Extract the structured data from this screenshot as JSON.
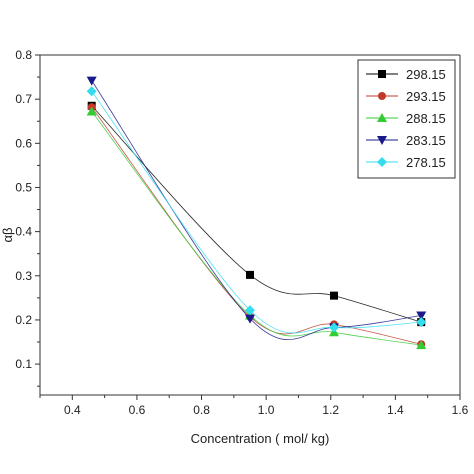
{
  "chart_data": {
    "type": "line",
    "title": "",
    "xlabel": "Concentration ( mol/ kg)",
    "ylabel": "αβ",
    "xlim": [
      0.3,
      1.6
    ],
    "ylim": [
      0.03,
      0.8
    ],
    "xticks": [
      "0.4",
      "0.6",
      "0.8",
      "1.0",
      "1.2",
      "1.4",
      "1.6"
    ],
    "yticks": [
      "0.1",
      "0.2",
      "0.3",
      "0.4",
      "0.5",
      "0.6",
      "0.7",
      "0.8"
    ],
    "xtick_values": [
      0.4,
      0.6,
      0.8,
      1.0,
      1.2,
      1.4,
      1.6
    ],
    "ytick_values": [
      0.1,
      0.2,
      0.3,
      0.4,
      0.5,
      0.6,
      0.7,
      0.8
    ],
    "grid": false,
    "legend_position": "top-right",
    "x": [
      0.46,
      0.95,
      1.21,
      1.48
    ],
    "series": [
      {
        "name": "298.15",
        "values": [
          0.685,
          0.302,
          0.255,
          0.195
        ],
        "color": "#000000",
        "marker": "square"
      },
      {
        "name": "293.15",
        "values": [
          0.682,
          0.207,
          0.19,
          0.145
        ],
        "color": "#c0392b",
        "marker": "circle"
      },
      {
        "name": "288.15",
        "values": [
          0.672,
          0.21,
          0.172,
          0.143
        ],
        "color": "#33cc33",
        "marker": "triangle-up"
      },
      {
        "name": "283.15",
        "values": [
          0.742,
          0.203,
          0.183,
          0.21
        ],
        "color": "#1a1a8c",
        "marker": "triangle-down"
      },
      {
        "name": "278.15",
        "values": [
          0.718,
          0.222,
          0.183,
          0.195
        ],
        "color": "#33ddee",
        "marker": "diamond"
      }
    ]
  }
}
